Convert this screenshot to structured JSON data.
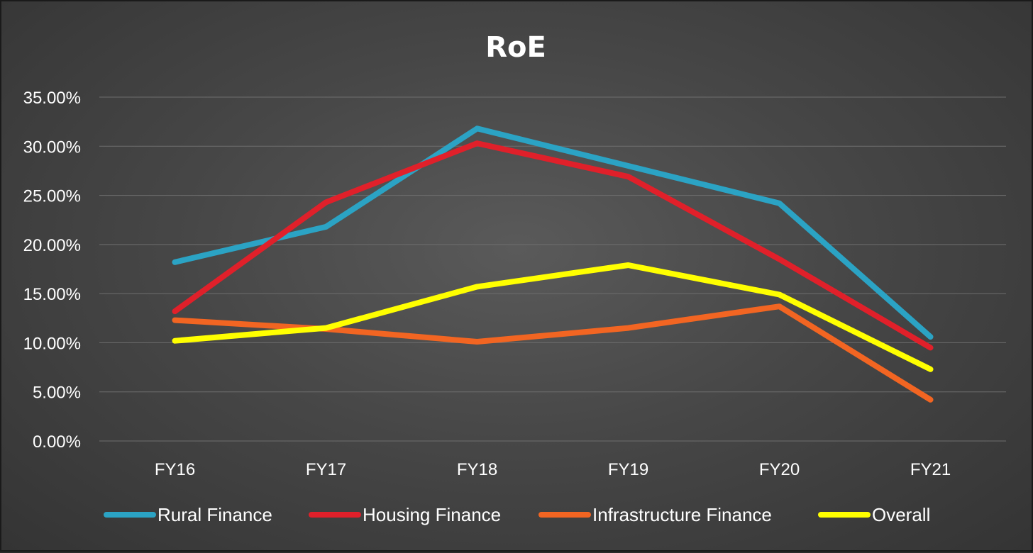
{
  "chart_data": {
    "type": "line",
    "title": "RoE",
    "xlabel": "",
    "ylabel": "",
    "categories": [
      "FY16",
      "FY17",
      "FY18",
      "FY19",
      "FY20",
      "FY21"
    ],
    "ylim": [
      0,
      35
    ],
    "y_ticks": [
      0,
      5,
      10,
      15,
      20,
      25,
      30,
      35
    ],
    "y_tick_labels": [
      "0.00%",
      "5.00%",
      "10.00%",
      "15.00%",
      "20.00%",
      "25.00%",
      "30.00%",
      "35.00%"
    ],
    "grid": true,
    "legend_position": "bottom",
    "series": [
      {
        "name": "Rural Finance",
        "color": "#2ba3c4",
        "values": [
          18.2,
          21.8,
          31.8,
          28.0,
          24.2,
          10.6
        ]
      },
      {
        "name": "Housing Finance",
        "color": "#e0202a",
        "values": [
          13.2,
          24.3,
          30.3,
          26.9,
          18.5,
          9.5
        ]
      },
      {
        "name": "Infrastructure Finance",
        "color": "#f26522",
        "values": [
          12.3,
          11.4,
          10.1,
          11.5,
          13.7,
          4.2
        ]
      },
      {
        "name": "Overall",
        "color": "#ffff00",
        "values": [
          10.2,
          11.5,
          15.7,
          17.9,
          14.9,
          7.3
        ]
      }
    ]
  }
}
